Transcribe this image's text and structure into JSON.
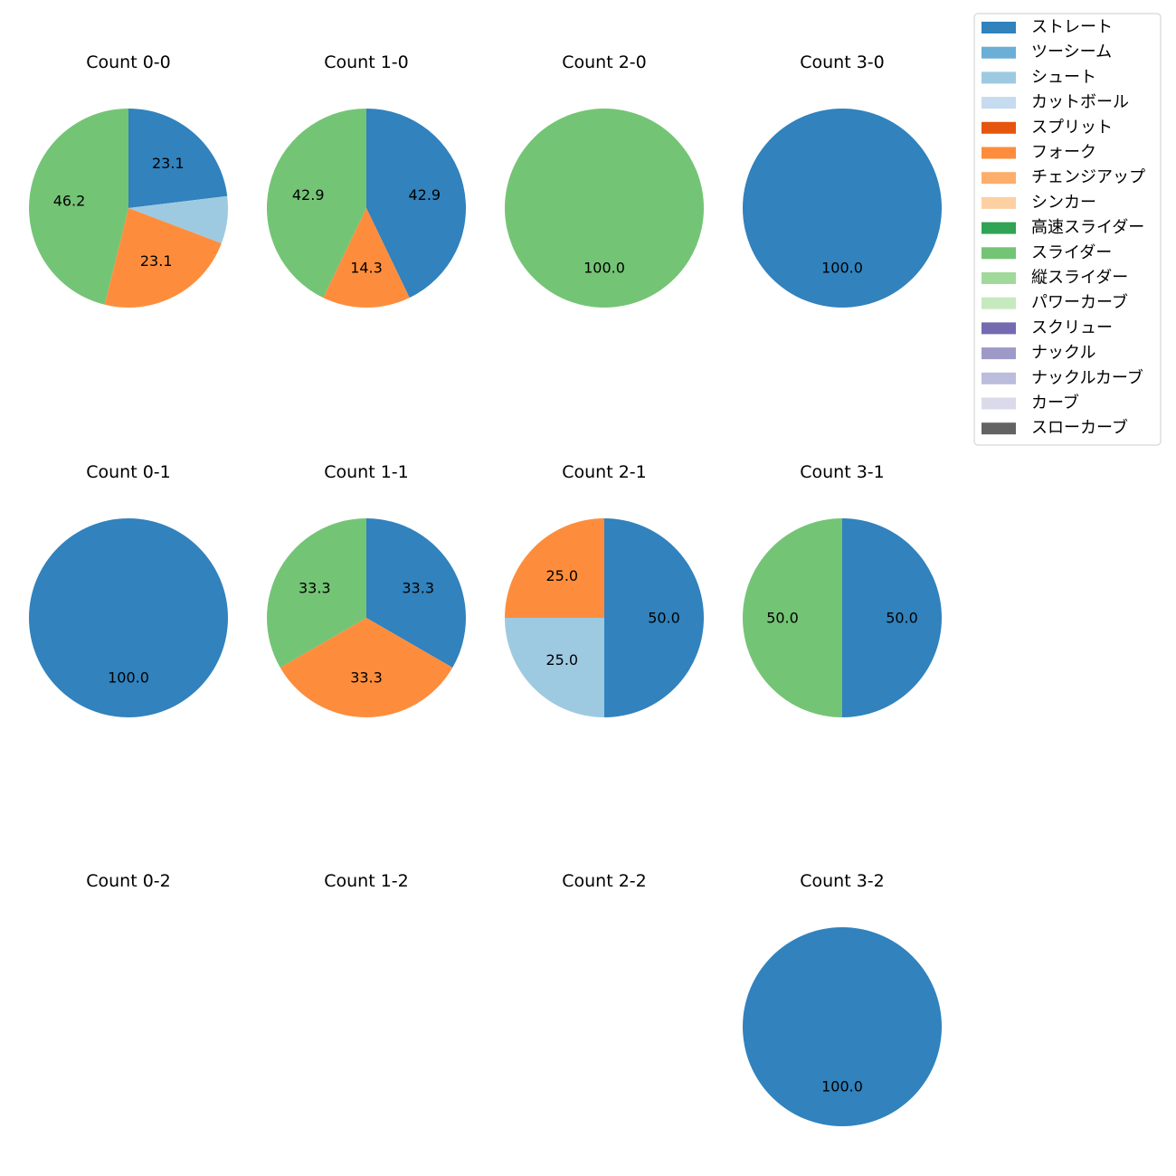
{
  "chart_data": {
    "type": "pie",
    "colors": {
      "ストレート": "#3182bd",
      "ツーシーム": "#6baed6",
      "シュート": "#9ecae1",
      "カットボール": "#c6dbef",
      "スプリット": "#e6550d",
      "フォーク": "#fd8d3c",
      "チェンジアップ": "#fdae6b",
      "シンカー": "#fdd0a2",
      "高速スライダー": "#31a354",
      "スライダー": "#74c476",
      "縦スライダー": "#a1d99b",
      "パワーカーブ": "#c7e9c0",
      "スクリュー": "#756bb1",
      "ナックル": "#9e9ac8",
      "ナックルカーブ": "#bcbddc",
      "カーブ": "#dadaeb",
      "スローカーブ": "#636363"
    },
    "legend": {
      "position": "top-right",
      "entries": [
        "ストレート",
        "ツーシーム",
        "シュート",
        "カットボール",
        "スプリット",
        "フォーク",
        "チェンジアップ",
        "シンカー",
        "高速スライダー",
        "スライダー",
        "縦スライダー",
        "パワーカーブ",
        "スクリュー",
        "ナックル",
        "ナックルカーブ",
        "カーブ",
        "スローカーブ"
      ]
    },
    "panels": [
      {
        "title": "Count 0-0",
        "slices": [
          {
            "name": "ストレート",
            "value": 23.1,
            "label": "23.1"
          },
          {
            "name": "シュート",
            "value": 7.7,
            "label": ""
          },
          {
            "name": "フォーク",
            "value": 23.1,
            "label": "23.1"
          },
          {
            "name": "スライダー",
            "value": 46.2,
            "label": "46.2"
          }
        ]
      },
      {
        "title": "Count 1-0",
        "slices": [
          {
            "name": "ストレート",
            "value": 42.9,
            "label": "42.9"
          },
          {
            "name": "フォーク",
            "value": 14.3,
            "label": "14.3"
          },
          {
            "name": "スライダー",
            "value": 42.9,
            "label": "42.9"
          }
        ]
      },
      {
        "title": "Count 2-0",
        "slices": [
          {
            "name": "スライダー",
            "value": 100.0,
            "label": "100.0"
          }
        ]
      },
      {
        "title": "Count 3-0",
        "slices": [
          {
            "name": "ストレート",
            "value": 100.0,
            "label": "100.0"
          }
        ]
      },
      {
        "title": "Count 0-1",
        "slices": [
          {
            "name": "ストレート",
            "value": 100.0,
            "label": "100.0"
          }
        ]
      },
      {
        "title": "Count 1-1",
        "slices": [
          {
            "name": "ストレート",
            "value": 33.3,
            "label": "33.3"
          },
          {
            "name": "フォーク",
            "value": 33.3,
            "label": "33.3"
          },
          {
            "name": "スライダー",
            "value": 33.3,
            "label": "33.3"
          }
        ]
      },
      {
        "title": "Count 2-1",
        "slices": [
          {
            "name": "ストレート",
            "value": 50.0,
            "label": "50.0"
          },
          {
            "name": "シュート",
            "value": 25.0,
            "label": "25.0"
          },
          {
            "name": "フォーク",
            "value": 25.0,
            "label": "25.0"
          }
        ]
      },
      {
        "title": "Count 3-1",
        "slices": [
          {
            "name": "ストレート",
            "value": 50.0,
            "label": "50.0"
          },
          {
            "name": "スライダー",
            "value": 50.0,
            "label": "50.0"
          }
        ]
      },
      {
        "title": "Count 0-2",
        "slices": []
      },
      {
        "title": "Count 1-2",
        "slices": []
      },
      {
        "title": "Count 2-2",
        "slices": []
      },
      {
        "title": "Count 3-2",
        "slices": [
          {
            "name": "ストレート",
            "value": 100.0,
            "label": "100.0"
          }
        ]
      }
    ]
  }
}
